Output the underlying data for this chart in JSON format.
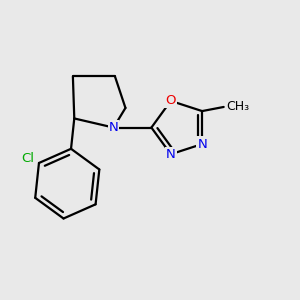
{
  "background_color": "#e9e9e9",
  "bond_color": "#000000",
  "bond_width": 1.6,
  "atom_colors": {
    "N": "#0000ee",
    "O": "#ee0000",
    "Cl": "#00aa00",
    "C": "#000000"
  },
  "font_size_atom": 9.5,
  "font_size_methyl": 9,
  "xlim": [
    0.3,
    4.5
  ],
  "ylim": [
    0.2,
    3.6
  ]
}
